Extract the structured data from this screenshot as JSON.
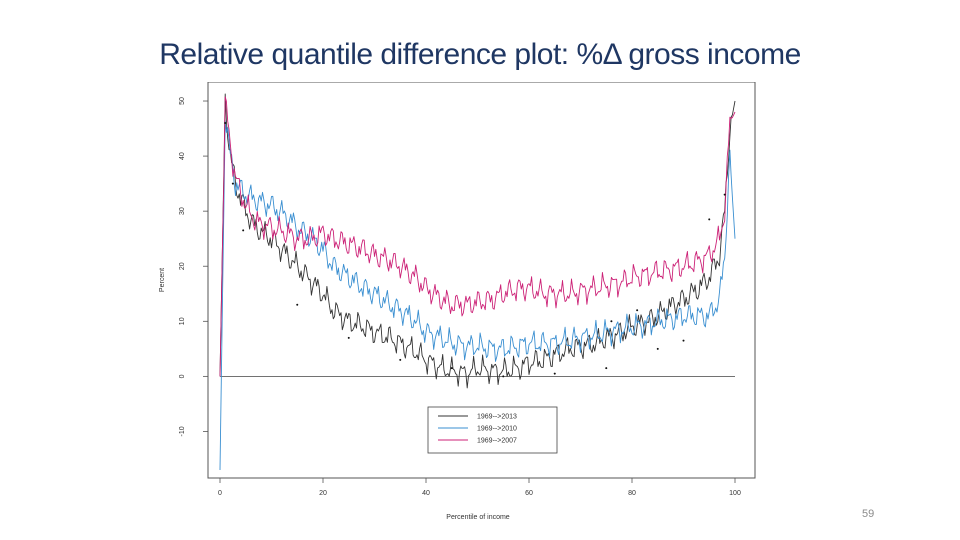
{
  "slide": {
    "title": "Relative quantile difference plot: %Δ gross income",
    "page_number": "59"
  },
  "colors": {
    "title": "#1f3763",
    "series_2013": "#333333",
    "series_2010": "#3a8fd1",
    "series_2007": "#cc2277"
  },
  "chart_data": {
    "type": "line",
    "title": "",
    "xlabel": "Percentile of income",
    "ylabel": "Percent",
    "xlim": [
      0,
      100
    ],
    "ylim": [
      -17,
      52
    ],
    "x_ticks": [
      0,
      20,
      40,
      60,
      80,
      100
    ],
    "x_tick_labels": [
      "0",
      "20",
      "40",
      "60",
      "80",
      "100"
    ],
    "y_ticks": [
      -10,
      0,
      10,
      20,
      30,
      40,
      50
    ],
    "y_tick_labels": [
      "-10",
      "0",
      "10",
      "20",
      "30",
      "40",
      "50"
    ],
    "reference_line_y": 0,
    "legend_position": "bottom-center",
    "x": [
      0,
      1,
      2,
      3,
      5,
      7,
      10,
      13,
      15,
      18,
      20,
      22,
      25,
      28,
      30,
      33,
      35,
      38,
      40,
      43,
      45,
      48,
      50,
      53,
      55,
      58,
      60,
      63,
      65,
      68,
      70,
      73,
      75,
      78,
      80,
      83,
      85,
      88,
      90,
      93,
      95,
      97,
      98,
      99,
      100
    ],
    "series": [
      {
        "name": "1969-->2013",
        "color": "#333333",
        "values": [
          0,
          50,
          40,
          35,
          30,
          27,
          25,
          22,
          20,
          17,
          15,
          12,
          10,
          9,
          8,
          7,
          6,
          4.5,
          3,
          1.5,
          1,
          0.5,
          1.5,
          1,
          1,
          1.5,
          2.5,
          3,
          4,
          5,
          5.5,
          6,
          7,
          8,
          9,
          10,
          11,
          13,
          14,
          16,
          18,
          22,
          30,
          45,
          50
        ]
      },
      {
        "name": "1969-->2010",
        "color": "#3a8fd1",
        "values": [
          -17,
          48,
          40,
          35,
          33,
          32,
          31,
          29,
          27,
          25,
          23,
          20,
          18,
          16,
          15,
          13,
          12,
          10,
          8,
          7,
          6,
          5.5,
          5.5,
          5,
          5,
          5.5,
          6,
          6,
          6,
          6.5,
          7,
          7.5,
          8,
          8.5,
          9,
          9.5,
          10,
          10.5,
          11,
          11,
          11,
          14,
          22,
          40,
          25
        ]
      },
      {
        "name": "1969-->2007",
        "color": "#cc2277",
        "values": [
          0,
          50,
          42,
          36,
          31,
          28,
          27,
          26,
          25,
          25,
          26,
          25,
          24,
          23,
          22,
          21,
          20,
          18,
          16,
          14,
          13,
          13,
          13.5,
          14,
          15,
          16,
          16,
          15,
          15,
          15,
          15.5,
          16,
          16.5,
          17,
          18,
          18.5,
          19,
          19.5,
          20,
          21,
          22,
          25,
          30,
          46,
          48
        ]
      }
    ],
    "scatter_points": [
      {
        "x": 1,
        "y": 46
      },
      {
        "x": 2.5,
        "y": 35
      },
      {
        "x": 4.5,
        "y": 26.5
      },
      {
        "x": 15,
        "y": 13
      },
      {
        "x": 25,
        "y": 7
      },
      {
        "x": 35,
        "y": 3
      },
      {
        "x": 45,
        "y": 1.5
      },
      {
        "x": 55,
        "y": 0
      },
      {
        "x": 65,
        "y": 0.5
      },
      {
        "x": 75,
        "y": 1.5
      },
      {
        "x": 76,
        "y": 10
      },
      {
        "x": 81,
        "y": 12
      },
      {
        "x": 85,
        "y": 5
      },
      {
        "x": 90,
        "y": 6.5
      },
      {
        "x": 95,
        "y": 28.5
      },
      {
        "x": 98,
        "y": 33
      }
    ]
  }
}
